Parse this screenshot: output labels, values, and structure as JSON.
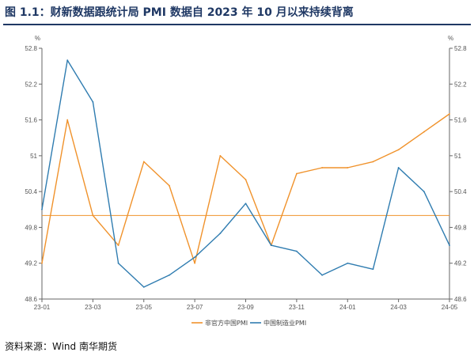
{
  "header": {
    "title": "图 1.1：财新数据跟统计局 PMI 数据自 2023 年 10 月以来持续背离"
  },
  "footer": {
    "source": "资料来源：Wind  南华期货"
  },
  "chart_data": {
    "type": "line",
    "x": [
      "23-01",
      "23-02",
      "23-03",
      "23-04",
      "23-05",
      "23-06",
      "23-07",
      "23-08",
      "23-09",
      "23-10",
      "23-11",
      "23-12",
      "24-01",
      "24-02",
      "24-03",
      "24-04",
      "24-05"
    ],
    "x_tick_labels": [
      "23-01",
      "23-03",
      "23-05",
      "23-07",
      "23-09",
      "23-11",
      "24-01",
      "24-03",
      "24-05"
    ],
    "series": [
      {
        "name": "非官方中国PMI",
        "color": "#f0922b",
        "values": [
          49.2,
          51.6,
          50.0,
          49.5,
          50.9,
          50.5,
          49.2,
          51.0,
          50.6,
          49.5,
          50.7,
          50.8,
          50.8,
          50.9,
          51.1,
          51.4,
          51.7
        ]
      },
      {
        "name": "中国制造业PMI",
        "color": "#2f7cb0",
        "values": [
          50.1,
          52.6,
          51.9,
          49.2,
          48.8,
          49.0,
          49.3,
          49.7,
          50.2,
          49.5,
          49.4,
          49.0,
          49.2,
          49.1,
          50.8,
          50.4,
          49.5
        ]
      }
    ],
    "reference_line": {
      "value": 50.0,
      "color": "#f0922b"
    },
    "ylim": [
      48.6,
      52.8
    ],
    "y_ticks": [
      "48.6",
      "49.2",
      "49.8",
      "50.4",
      "51",
      "51.6",
      "52.2",
      "52.8"
    ],
    "ylabel_left": "%",
    "ylabel_right": "%",
    "grid": false,
    "legend_position": "bottom"
  }
}
